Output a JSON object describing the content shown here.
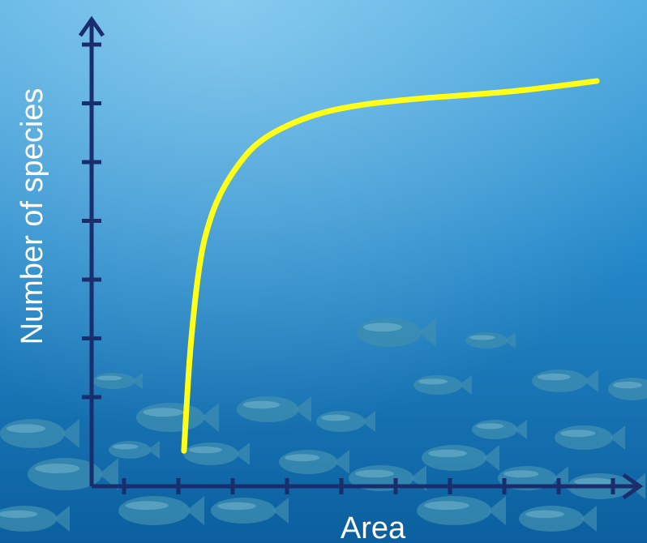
{
  "chart_data": {
    "type": "line",
    "xlabel": "Area",
    "ylabel": "Number of species",
    "xlim": [
      0,
      10
    ],
    "ylim": [
      0,
      7
    ],
    "x_tick_count": 10,
    "y_tick_count": 7,
    "grid": false,
    "series": [
      {
        "color": "#ffff1a",
        "points": [
          [
            1.7,
            0.6
          ],
          [
            1.8,
            2.1
          ],
          [
            1.9,
            3.1
          ],
          [
            2.0,
            3.8
          ],
          [
            2.1,
            4.25
          ],
          [
            2.3,
            4.8
          ],
          [
            2.6,
            5.3
          ],
          [
            3.0,
            5.75
          ],
          [
            3.5,
            6.05
          ],
          [
            4.2,
            6.3
          ],
          [
            5.0,
            6.45
          ],
          [
            6.0,
            6.55
          ],
          [
            7.0,
            6.62
          ],
          [
            8.0,
            6.7
          ],
          [
            9.3,
            6.85
          ]
        ]
      }
    ]
  },
  "colors": {
    "axis": "#1a2e6e",
    "curve": "#ffff1a",
    "label": "#ffffff",
    "water_top": "#4aa9df",
    "water_bottom": "#0b5f9e"
  }
}
